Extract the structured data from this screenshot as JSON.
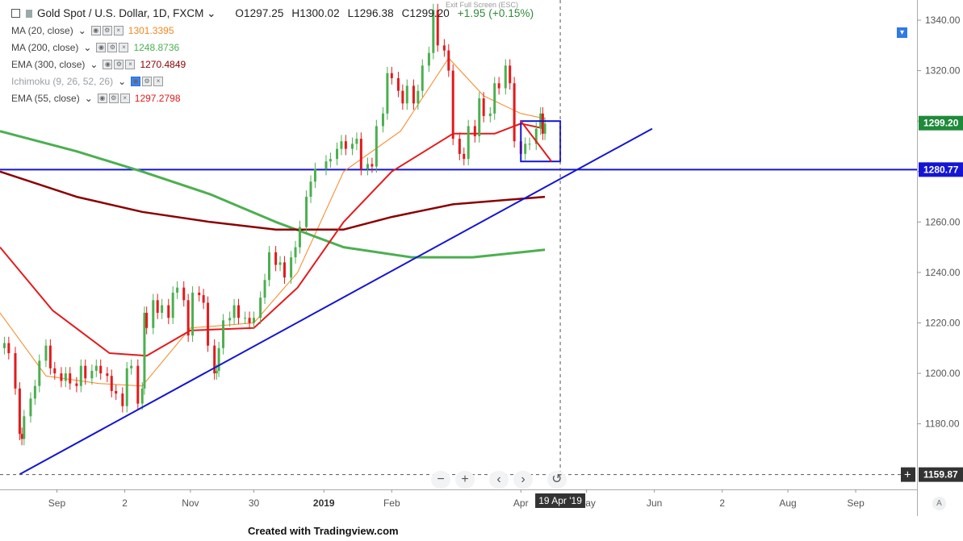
{
  "header": {
    "title": "Gold Spot / U.S. Dollar, 1D, FXCM",
    "open": "O1297.25",
    "high": "H1300.02",
    "low": "L1296.38",
    "close": "C1299.20",
    "change": "+1.95 (+0.15%)",
    "exit_fullscreen": "Exit Full Screen (ESC)"
  },
  "indicators": [
    {
      "label": "MA (20, close)",
      "value": "1301.3395",
      "color": "#f5861f",
      "dim": false
    },
    {
      "label": "MA (200, close)",
      "value": "1248.8736",
      "color": "#4caf50",
      "dim": false
    },
    {
      "label": "EMA (300, close)",
      "value": "1270.4849",
      "color": "#8b0000",
      "dim": false
    },
    {
      "label": "Ichimoku (9, 26, 52, 26)",
      "value": "",
      "color": "#9aa0a6",
      "dim": true
    },
    {
      "label": "EMA (55, close)",
      "value": "1297.2798",
      "color": "#e31a1c",
      "dim": false
    }
  ],
  "nav": {
    "zoom_out": "−",
    "zoom_in": "+",
    "prev": "‹",
    "next": "›",
    "reset": "↺"
  },
  "footer": "Created with Tradingview.com",
  "auto_label": "A",
  "chart_data": {
    "type": "candlestick",
    "colors": {
      "up": "#4caf50",
      "down": "#e31a1c",
      "ma20": "#f5861f",
      "ma200": "#4caf50",
      "ema300": "#8b0000",
      "ema55": "#e31a1c",
      "trendline": "#1515d4",
      "hline": "#1515d4",
      "crosshair": "#555555",
      "price_badge_bg": "#1f8a3a",
      "level_badge_bg": "#1515d4",
      "cross_badge_bg": "#333333"
    },
    "y_ticks": [
      "1340.00",
      "1320.00",
      "1300.00",
      "1280.00",
      "1260.00",
      "1240.00",
      "1220.00",
      "1200.00",
      "1180.00"
    ],
    "ylim": [
      1154,
      1348
    ],
    "x_ticks": [
      "Sep",
      "2",
      "Nov",
      "30",
      "2019",
      "Feb",
      "Apr",
      "May",
      "Jun",
      "2",
      "Aug",
      "Sep"
    ],
    "x_tick_dates": [
      "2018-09-01",
      "2018-10-02",
      "2018-11-01",
      "2018-11-30",
      "2019-01-01",
      "2019-02-01",
      "2019-04-01",
      "2019-05-01",
      "2019-06-01",
      "2019-07-02",
      "2019-08-01",
      "2019-09-01"
    ],
    "xlim": [
      "2018-08-06",
      "2019-09-29"
    ],
    "last_price": "1299.20",
    "support_level": "1280.77",
    "cursor_price": "1159.87",
    "cursor_date": "19 Apr '19",
    "candles_close": [
      [
        "2018-08-08",
        1212
      ],
      [
        "2018-08-10",
        1208
      ],
      [
        "2018-08-13",
        1194
      ],
      [
        "2018-08-15",
        1176
      ],
      [
        "2018-08-16",
        1174
      ],
      [
        "2018-08-17",
        1183
      ],
      [
        "2018-08-20",
        1190
      ],
      [
        "2018-08-22",
        1195
      ],
      [
        "2018-08-24",
        1205
      ],
      [
        "2018-08-27",
        1211
      ],
      [
        "2018-08-29",
        1202
      ],
      [
        "2018-08-31",
        1200
      ],
      [
        "2018-09-03",
        1197
      ],
      [
        "2018-09-05",
        1200
      ],
      [
        "2018-09-07",
        1196
      ],
      [
        "2018-09-10",
        1195
      ],
      [
        "2018-09-12",
        1203
      ],
      [
        "2018-09-14",
        1198
      ],
      [
        "2018-09-17",
        1201
      ],
      [
        "2018-09-19",
        1203
      ],
      [
        "2018-09-21",
        1200
      ],
      [
        "2018-09-24",
        1199
      ],
      [
        "2018-09-26",
        1193
      ],
      [
        "2018-09-28",
        1192
      ],
      [
        "2018-10-01",
        1187
      ],
      [
        "2018-10-03",
        1202
      ],
      [
        "2018-10-05",
        1203
      ],
      [
        "2018-10-08",
        1188
      ],
      [
        "2018-10-10",
        1194
      ],
      [
        "2018-10-11",
        1224
      ],
      [
        "2018-10-12",
        1218
      ],
      [
        "2018-10-15",
        1229
      ],
      [
        "2018-10-17",
        1224
      ],
      [
        "2018-10-19",
        1227
      ],
      [
        "2018-10-22",
        1222
      ],
      [
        "2018-10-24",
        1232
      ],
      [
        "2018-10-26",
        1234
      ],
      [
        "2018-10-29",
        1229
      ],
      [
        "2018-10-31",
        1215
      ],
      [
        "2018-11-02",
        1232
      ],
      [
        "2018-11-05",
        1231
      ],
      [
        "2018-11-07",
        1228
      ],
      [
        "2018-11-09",
        1211
      ],
      [
        "2018-11-12",
        1200
      ],
      [
        "2018-11-13",
        1201
      ],
      [
        "2018-11-14",
        1210
      ],
      [
        "2018-11-16",
        1221
      ],
      [
        "2018-11-19",
        1222
      ],
      [
        "2018-11-21",
        1227
      ],
      [
        "2018-11-23",
        1222
      ],
      [
        "2018-11-26",
        1222
      ],
      [
        "2018-11-28",
        1220
      ],
      [
        "2018-11-30",
        1222
      ],
      [
        "2018-12-03",
        1230
      ],
      [
        "2018-12-05",
        1237
      ],
      [
        "2018-12-07",
        1248
      ],
      [
        "2018-12-10",
        1243
      ],
      [
        "2018-12-12",
        1244
      ],
      [
        "2018-12-14",
        1238
      ],
      [
        "2018-12-17",
        1246
      ],
      [
        "2018-12-19",
        1250
      ],
      [
        "2018-12-21",
        1258
      ],
      [
        "2018-12-24",
        1270
      ],
      [
        "2018-12-26",
        1276
      ],
      [
        "2018-12-28",
        1281
      ],
      [
        "2019-01-02",
        1284
      ],
      [
        "2019-01-04",
        1285
      ],
      [
        "2019-01-07",
        1289
      ],
      [
        "2019-01-09",
        1292
      ],
      [
        "2019-01-11",
        1289
      ],
      [
        "2019-01-14",
        1291
      ],
      [
        "2019-01-16",
        1293
      ],
      [
        "2019-01-18",
        1281
      ],
      [
        "2019-01-21",
        1283
      ],
      [
        "2019-01-23",
        1282
      ],
      [
        "2019-01-25",
        1298
      ],
      [
        "2019-01-28",
        1303
      ],
      [
        "2019-01-30",
        1319
      ],
      [
        "2019-02-01",
        1317
      ],
      [
        "2019-02-04",
        1312
      ],
      [
        "2019-02-06",
        1307
      ],
      [
        "2019-02-08",
        1314
      ],
      [
        "2019-02-11",
        1307
      ],
      [
        "2019-02-13",
        1312
      ],
      [
        "2019-02-15",
        1322
      ],
      [
        "2019-02-18",
        1327
      ],
      [
        "2019-02-20",
        1344
      ],
      [
        "2019-02-22",
        1330
      ],
      [
        "2019-02-25",
        1328
      ],
      [
        "2019-02-27",
        1320
      ],
      [
        "2019-03-01",
        1293
      ],
      [
        "2019-03-04",
        1287
      ],
      [
        "2019-03-06",
        1285
      ],
      [
        "2019-03-08",
        1298
      ],
      [
        "2019-03-11",
        1294
      ],
      [
        "2019-03-13",
        1309
      ],
      [
        "2019-03-15",
        1302
      ],
      [
        "2019-03-18",
        1303
      ],
      [
        "2019-03-20",
        1315
      ],
      [
        "2019-03-22",
        1313
      ],
      [
        "2019-03-25",
        1322
      ],
      [
        "2019-03-27",
        1315
      ],
      [
        "2019-03-29",
        1292
      ],
      [
        "2019-04-01",
        1287
      ],
      [
        "2019-04-03",
        1291
      ],
      [
        "2019-04-05",
        1291
      ],
      [
        "2019-04-08",
        1297
      ],
      [
        "2019-04-10",
        1303
      ],
      [
        "2019-04-11",
        1295
      ],
      [
        "2019-04-12",
        1299
      ]
    ],
    "series": [
      {
        "name": "MA (20, close)",
        "points": [
          [
            "2018-08-06",
            1224
          ],
          [
            "2018-08-27",
            1199
          ],
          [
            "2018-09-20",
            1196
          ],
          [
            "2018-10-10",
            1195
          ],
          [
            "2018-11-01",
            1218
          ],
          [
            "2018-11-30",
            1220
          ],
          [
            "2018-12-20",
            1240
          ],
          [
            "2019-01-10",
            1280
          ],
          [
            "2019-02-05",
            1296
          ],
          [
            "2019-02-27",
            1325
          ],
          [
            "2019-03-15",
            1310
          ],
          [
            "2019-04-01",
            1303
          ],
          [
            "2019-04-12",
            1301
          ]
        ]
      },
      {
        "name": "MA (200, close)",
        "points": [
          [
            "2018-08-06",
            1296
          ],
          [
            "2018-09-10",
            1288
          ],
          [
            "2018-10-10",
            1280
          ],
          [
            "2018-11-10",
            1271
          ],
          [
            "2018-12-10",
            1260
          ],
          [
            "2019-01-10",
            1250
          ],
          [
            "2019-02-10",
            1246
          ],
          [
            "2019-03-10",
            1246
          ],
          [
            "2019-04-12",
            1249
          ]
        ]
      },
      {
        "name": "EMA (300, close)",
        "points": [
          [
            "2018-08-06",
            1280
          ],
          [
            "2018-09-10",
            1270
          ],
          [
            "2018-10-10",
            1264
          ],
          [
            "2018-11-10",
            1260
          ],
          [
            "2018-12-10",
            1257
          ],
          [
            "2019-01-10",
            1257
          ],
          [
            "2019-02-01",
            1262
          ],
          [
            "2019-03-01",
            1267
          ],
          [
            "2019-04-12",
            1270
          ]
        ]
      },
      {
        "name": "EMA (55, close)",
        "points": [
          [
            "2018-08-06",
            1250
          ],
          [
            "2018-08-30",
            1225
          ],
          [
            "2018-09-25",
            1208
          ],
          [
            "2018-10-12",
            1207
          ],
          [
            "2018-11-01",
            1217
          ],
          [
            "2018-11-30",
            1218
          ],
          [
            "2018-12-20",
            1234
          ],
          [
            "2019-01-10",
            1260
          ],
          [
            "2019-02-01",
            1280
          ],
          [
            "2019-03-01",
            1295
          ],
          [
            "2019-03-20",
            1295
          ],
          [
            "2019-04-01",
            1299
          ],
          [
            "2019-04-12",
            1297
          ]
        ]
      }
    ],
    "trendline": [
      [
        "2018-08-15",
        1160
      ],
      [
        "2019-05-31",
        1297
      ]
    ],
    "box": {
      "from": "2019-04-01",
      "to": "2019-04-19",
      "top": 1300,
      "bottom": 1284
    },
    "box_diagonal": [
      [
        "2019-04-01",
        1300
      ],
      [
        "2019-04-15",
        1284
      ]
    ]
  }
}
